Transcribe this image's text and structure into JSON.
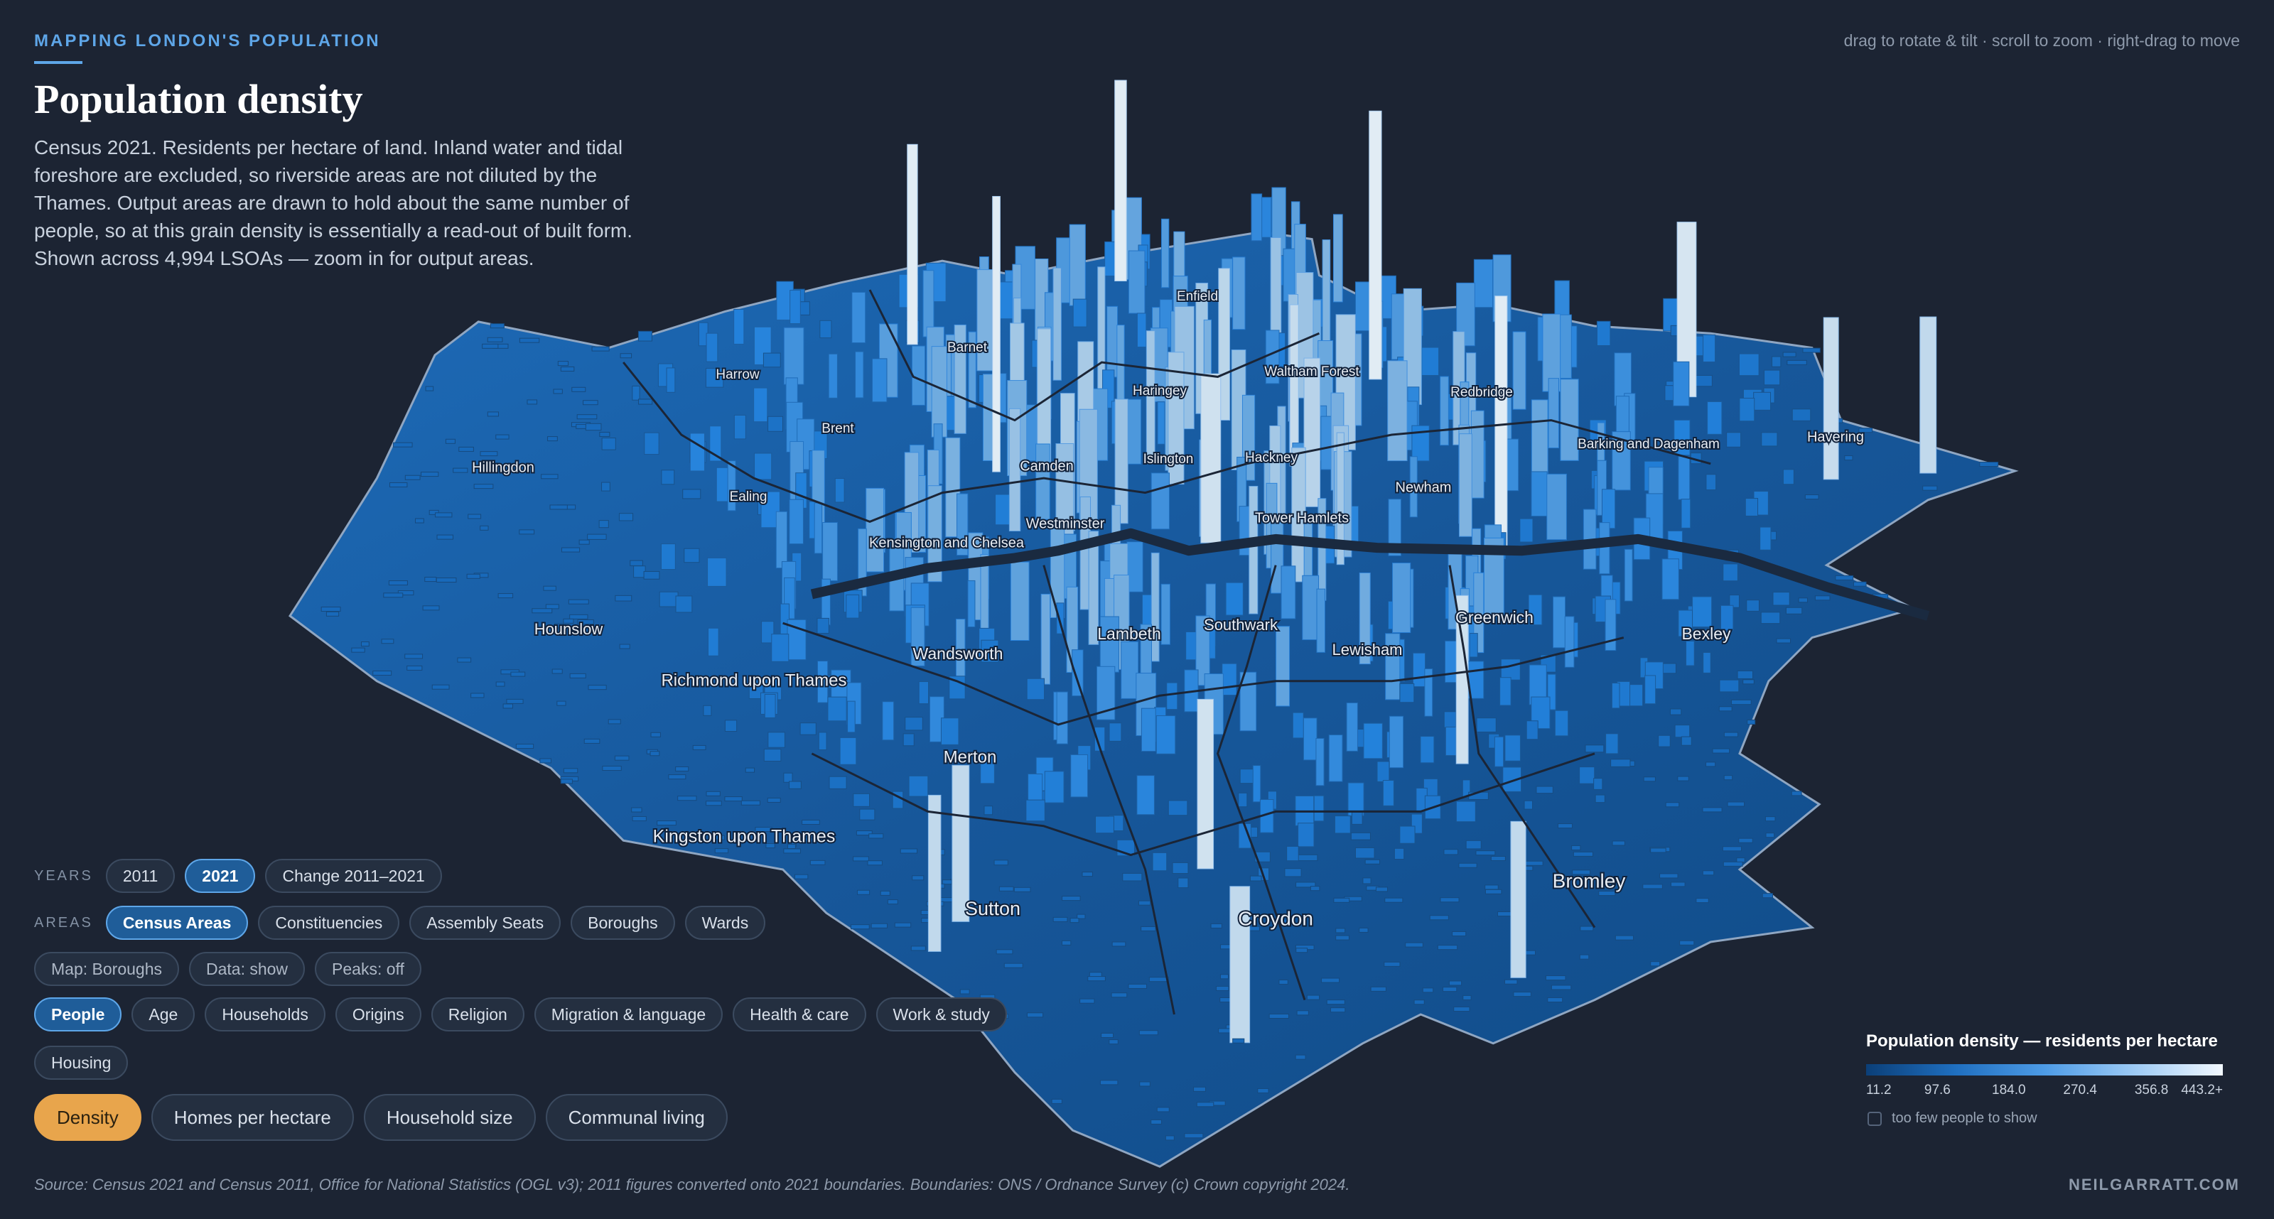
{
  "header": {
    "kicker": "MAPPING LONDON'S POPULATION",
    "title": "Population density",
    "description": "Census 2021. Residents per hectare of land. Inland water and tidal foreshore are excluded, so riverside areas are not diluted by the Thames. Output areas are drawn to hold about the same number of people, so at this grain density is essentially a read-out of built form. Shown across 4,994 LSOAs — zoom in for output areas."
  },
  "hint": "drag to rotate & tilt · scroll to zoom · right-drag to move",
  "map": {
    "labels": [
      "Enfield",
      "Barnet",
      "Harrow",
      "Haringey",
      "Waltham Forest",
      "Redbridge",
      "Brent",
      "Hillingdon",
      "Camden",
      "Islington",
      "Hackney",
      "Barking and Dagenham",
      "Havering",
      "Ealing",
      "Westminster",
      "Tower Hamlets",
      "Newham",
      "Kensington and Chelsea",
      "Hounslow",
      "Lambeth",
      "Southwark",
      "Greenwich",
      "Bexley",
      "Lewisham",
      "Wandsworth",
      "Richmond upon Thames",
      "Merton",
      "Kingston upon Thames",
      "Sutton",
      "Croydon",
      "Bromley"
    ]
  },
  "controls": {
    "years": {
      "label": "YEARS",
      "options": [
        "2011",
        "2021",
        "Change 2011–2021"
      ],
      "selected": 1
    },
    "areas": {
      "label": "AREAS",
      "options": [
        "Census Areas",
        "Constituencies",
        "Assembly Seats",
        "Boroughs",
        "Wards"
      ],
      "selected": 0
    },
    "toggles": [
      "Map: Boroughs",
      "Data: show",
      "Peaks: off"
    ],
    "topics": {
      "options": [
        "People",
        "Age",
        "Households",
        "Origins",
        "Religion",
        "Migration & language",
        "Health & care",
        "Work & study",
        "Housing"
      ],
      "selected": 0
    },
    "measures": {
      "options": [
        "Density",
        "Homes per hectare",
        "Household size",
        "Communal living"
      ],
      "selected": 0
    }
  },
  "legend": {
    "title": "Population density — residents per hectare",
    "ticks": [
      "11.2",
      "97.6",
      "184.0",
      "270.4",
      "356.8",
      "443.2+"
    ],
    "checkbox_label": "too few people to show"
  },
  "footer": {
    "source": "Source: Census 2021 and Census 2011, Office for National Statistics (OGL v3); 2011 figures converted onto 2021 boundaries. Boundaries: ONS / Ordnance Survey (c) Crown copyright 2024.",
    "credit": "NEILGARRATT.COM"
  }
}
